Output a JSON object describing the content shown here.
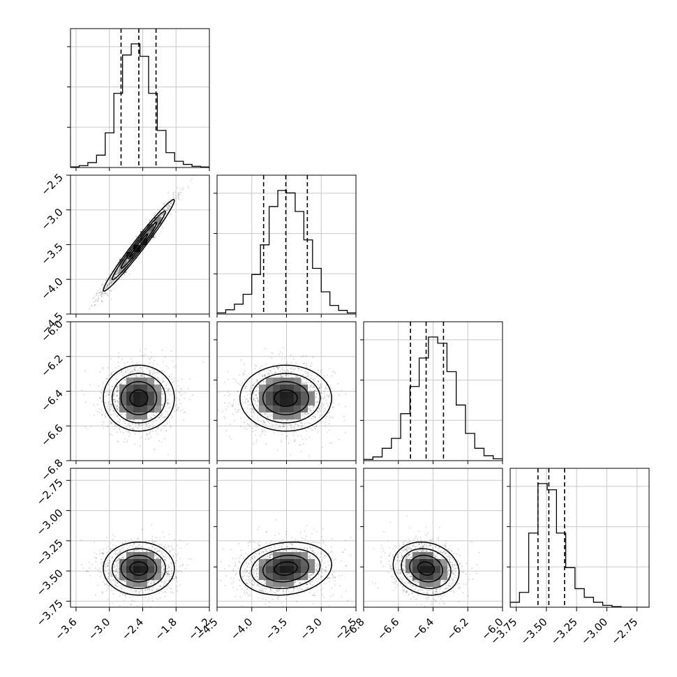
{
  "chart_data": {
    "type": "corner",
    "variables": [
      {
        "range": [
          -3.7,
          -1.2
        ],
        "ticks": [
          "−3.6",
          "−3.0",
          "−2.4",
          "−1.8",
          "−1.2"
        ],
        "quantiles": [
          -2.79,
          -2.47,
          -2.16
        ],
        "hist": [
          0.005,
          0.015,
          0.04,
          0.1,
          0.28,
          0.6,
          0.91,
          1.0,
          0.9,
          0.6,
          0.3,
          0.12,
          0.05,
          0.025,
          0.01,
          0.004
        ]
      },
      {
        "range": [
          -4.5,
          -2.5
        ],
        "ticks": [
          "−4.5",
          "−4.0",
          "−3.5",
          "−3.0",
          "−2.5"
        ],
        "quantiles": [
          -3.83,
          -3.51,
          -3.2
        ],
        "hist": [
          0.01,
          0.035,
          0.08,
          0.16,
          0.32,
          0.56,
          0.87,
          1.0,
          0.98,
          0.83,
          0.6,
          0.37,
          0.18,
          0.07,
          0.03,
          0.01
        ]
      },
      {
        "range": [
          -6.8,
          -6.0
        ],
        "ticks": [
          "−6.8",
          "−6.6",
          "−6.4",
          "−6.2",
          "−6.0"
        ],
        "quantiles": [
          -6.53,
          -6.44,
          -6.34
        ],
        "hist": [
          0.01,
          0.03,
          0.1,
          0.18,
          0.38,
          0.6,
          0.83,
          1.0,
          0.95,
          0.72,
          0.45,
          0.22,
          0.1,
          0.04,
          0.015
        ]
      },
      {
        "range": [
          -3.8,
          -2.65
        ],
        "ticks": [
          "−3.75",
          "−3.50",
          "−3.25",
          "−3.00",
          "−2.75"
        ],
        "quantiles": [
          -3.57,
          -3.48,
          -3.35
        ],
        "hist": [
          0.04,
          0.12,
          0.6,
          1.0,
          0.95,
          0.6,
          0.32,
          0.15,
          0.08,
          0.04,
          0.015,
          0.005,
          0.0,
          0.0,
          0.0
        ]
      }
    ],
    "pairs": [
      {
        "row": 1,
        "col": 0,
        "center": [
          -2.47,
          -3.51
        ],
        "sigma": [
          0.32,
          0.33
        ],
        "rho": 0.98
      },
      {
        "row": 2,
        "col": 0,
        "center": [
          -2.47,
          -6.44
        ],
        "sigma": [
          0.32,
          0.095
        ],
        "rho": 0.0
      },
      {
        "row": 2,
        "col": 1,
        "center": [
          -3.51,
          -6.44
        ],
        "sigma": [
          0.33,
          0.095
        ],
        "rho": 0.0
      },
      {
        "row": 3,
        "col": 0,
        "center": [
          -2.47,
          -3.48
        ],
        "sigma": [
          0.32,
          0.11
        ],
        "rho": 0.0
      },
      {
        "row": 3,
        "col": 1,
        "center": [
          -3.51,
          -3.48
        ],
        "sigma": [
          0.33,
          0.11
        ],
        "rho": 0.15
      },
      {
        "row": 3,
        "col": 2,
        "center": [
          -6.44,
          -3.48
        ],
        "sigma": [
          0.095,
          0.11
        ],
        "rho": -0.15
      }
    ],
    "xlabel": "",
    "ylabel": "",
    "title": "",
    "grid": true
  }
}
